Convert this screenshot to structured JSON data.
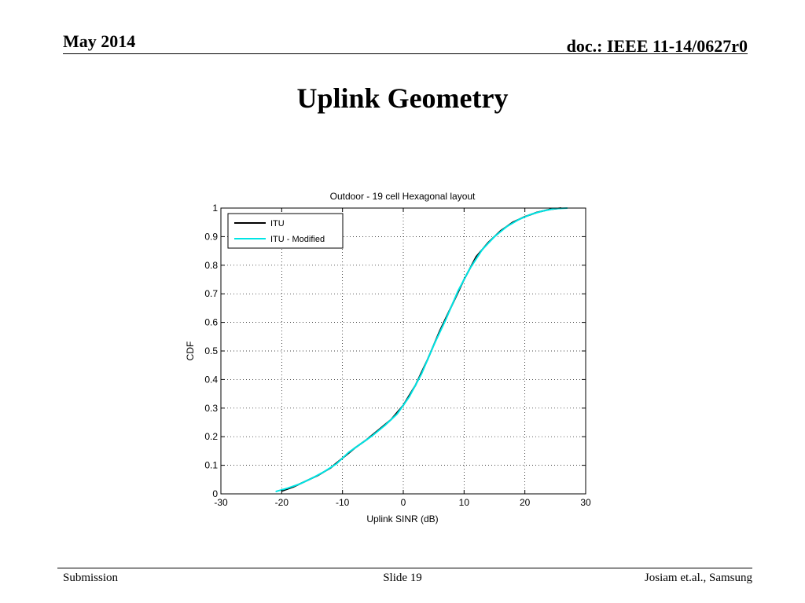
{
  "header": {
    "date": "May 2014",
    "doc_id": "doc.: IEEE 11-14/0627r0"
  },
  "slide": {
    "title": "Uplink Geometry"
  },
  "footer": {
    "left": "Submission",
    "center": "Slide 19",
    "right": "Josiam et.al., Samsung"
  },
  "colors": {
    "itu": "#000000",
    "itu_modified": "#00e5e5",
    "grid": "#000000"
  },
  "chart_data": {
    "type": "line",
    "title": "Outdoor - 19 cell Hexagonal layout",
    "xlabel": "Uplink SINR (dB)",
    "ylabel": "CDF",
    "xlim": [
      -30,
      30
    ],
    "ylim": [
      0,
      1
    ],
    "xticks": [
      -30,
      -20,
      -10,
      0,
      10,
      20,
      30
    ],
    "yticks": [
      0,
      0.1,
      0.2,
      0.3,
      0.4,
      0.5,
      0.6,
      0.7,
      0.8,
      0.9,
      1
    ],
    "xtick_labels": [
      "-30",
      "-20",
      "-10",
      "0",
      "10",
      "20",
      "30"
    ],
    "ytick_labels": [
      "0",
      "0.1",
      "0.2",
      "0.3",
      "0.4",
      "0.5",
      "0.6",
      "0.7",
      "0.8",
      "0.9",
      "1"
    ],
    "grid": true,
    "legend_position": "top-left",
    "series": [
      {
        "name": "ITU",
        "color": "#000000",
        "x": [
          -20,
          -18,
          -16,
          -14,
          -12,
          -10,
          -8,
          -6,
          -4,
          -2,
          0,
          2,
          4,
          6,
          8,
          10,
          12,
          14,
          16,
          18,
          20,
          22,
          24,
          26
        ],
        "y": [
          0.01,
          0.025,
          0.045,
          0.065,
          0.09,
          0.125,
          0.16,
          0.19,
          0.225,
          0.26,
          0.31,
          0.38,
          0.47,
          0.57,
          0.66,
          0.75,
          0.83,
          0.88,
          0.92,
          0.95,
          0.97,
          0.985,
          0.995,
          1.0
        ]
      },
      {
        "name": "ITU - Modified",
        "color": "#00e5e5",
        "x": [
          -21,
          -19,
          -17,
          -15,
          -13,
          -11,
          -9,
          -7,
          -5,
          -3,
          -1,
          1,
          3,
          5,
          7,
          9,
          11,
          13,
          15,
          17,
          19,
          21,
          23,
          25,
          27
        ],
        "y": [
          0.008,
          0.02,
          0.035,
          0.055,
          0.078,
          0.105,
          0.145,
          0.175,
          0.205,
          0.24,
          0.28,
          0.34,
          0.42,
          0.52,
          0.61,
          0.71,
          0.79,
          0.855,
          0.9,
          0.935,
          0.96,
          0.978,
          0.99,
          0.998,
          1.0
        ]
      }
    ]
  }
}
